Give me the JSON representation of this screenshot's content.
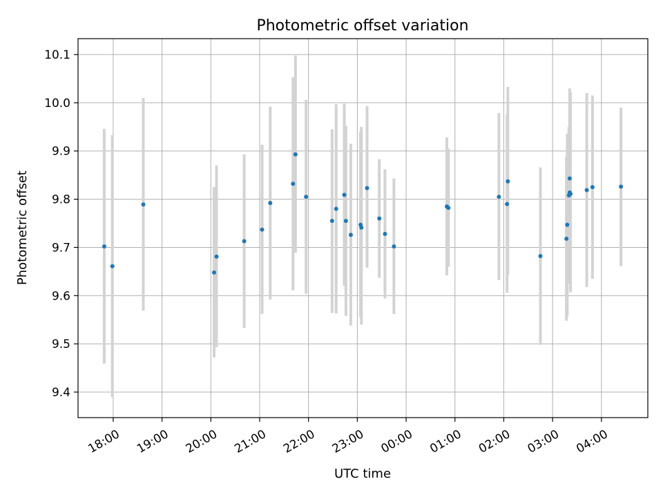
{
  "chart_data": {
    "type": "scatter",
    "title": "Photometric offset variation",
    "xlabel": "UTC time",
    "ylabel": "Photometric offset",
    "x_axis_kind": "time",
    "xlim_hours": [
      17.28,
      28.95
    ],
    "ylim": [
      9.347,
      10.133
    ],
    "x_ticks": [
      {
        "hour": 18,
        "label": "18:00"
      },
      {
        "hour": 19,
        "label": "19:00"
      },
      {
        "hour": 20,
        "label": "20:00"
      },
      {
        "hour": 21,
        "label": "21:00"
      },
      {
        "hour": 22,
        "label": "22:00"
      },
      {
        "hour": 23,
        "label": "23:00"
      },
      {
        "hour": 24,
        "label": "00:00"
      },
      {
        "hour": 25,
        "label": "01:00"
      },
      {
        "hour": 26,
        "label": "02:00"
      },
      {
        "hour": 27,
        "label": "03:00"
      },
      {
        "hour": 28,
        "label": "04:00"
      }
    ],
    "y_ticks": [
      {
        "value": 9.4,
        "label": "9.4"
      },
      {
        "value": 9.5,
        "label": "9.5"
      },
      {
        "value": 9.6,
        "label": "9.6"
      },
      {
        "value": 9.7,
        "label": "9.7"
      },
      {
        "value": 9.8,
        "label": "9.8"
      },
      {
        "value": 9.9,
        "label": "9.9"
      },
      {
        "value": 10.0,
        "label": "10.0"
      },
      {
        "value": 10.1,
        "label": "10.1"
      }
    ],
    "grid": true,
    "point_color": "#1f77b4",
    "errorbar_color": "#d3d3d3",
    "points": [
      {
        "time": "17:49",
        "y": 9.702,
        "err_low": 9.459,
        "err_high": 9.946
      },
      {
        "time": "17:59",
        "y": 9.661,
        "err_low": 9.389,
        "err_high": 9.933
      },
      {
        "time": "18:37",
        "y": 9.789,
        "err_low": 9.569,
        "err_high": 10.01
      },
      {
        "time": "20:04",
        "y": 9.648,
        "err_low": 9.472,
        "err_high": 9.825
      },
      {
        "time": "20:07",
        "y": 9.681,
        "err_low": 9.493,
        "err_high": 9.87
      },
      {
        "time": "20:41",
        "y": 9.713,
        "err_low": 9.533,
        "err_high": 9.893
      },
      {
        "time": "21:03",
        "y": 9.737,
        "err_low": 9.562,
        "err_high": 9.913
      },
      {
        "time": "21:13",
        "y": 9.792,
        "err_low": 9.592,
        "err_high": 9.992
      },
      {
        "time": "21:41",
        "y": 9.832,
        "err_low": 9.611,
        "err_high": 10.053
      },
      {
        "time": "21:44",
        "y": 9.893,
        "err_low": 9.689,
        "err_high": 10.098
      },
      {
        "time": "21:57",
        "y": 9.805,
        "err_low": 9.604,
        "err_high": 10.006
      },
      {
        "time": "22:29",
        "y": 9.755,
        "err_low": 9.564,
        "err_high": 9.945
      },
      {
        "time": "22:34",
        "y": 9.78,
        "err_low": 9.563,
        "err_high": 9.997
      },
      {
        "time": "22:44",
        "y": 9.809,
        "err_low": 9.62,
        "err_high": 9.998
      },
      {
        "time": "22:46",
        "y": 9.755,
        "err_low": 9.558,
        "err_high": 9.952
      },
      {
        "time": "22:52",
        "y": 9.726,
        "err_low": 9.538,
        "err_high": 9.915
      },
      {
        "time": "23:04",
        "y": 9.747,
        "err_low": 9.555,
        "err_high": 9.94
      },
      {
        "time": "23:05",
        "y": 9.741,
        "err_low": 9.54,
        "err_high": 9.95
      },
      {
        "time": "23:12",
        "y": 9.823,
        "err_low": 9.658,
        "err_high": 9.993
      },
      {
        "time": "23:27",
        "y": 9.76,
        "err_low": 9.637,
        "err_high": 9.883
      },
      {
        "time": "23:34",
        "y": 9.728,
        "err_low": 9.594,
        "err_high": 9.862
      },
      {
        "time": "23:45",
        "y": 9.702,
        "err_low": 9.562,
        "err_high": 9.843
      },
      {
        "time": "00:50",
        "y": 9.785,
        "err_low": 9.642,
        "err_high": 9.928
      },
      {
        "time": "00:52",
        "y": 9.782,
        "err_low": 9.66,
        "err_high": 9.905
      },
      {
        "time": "01:54",
        "y": 9.805,
        "err_low": 9.632,
        "err_high": 9.979
      },
      {
        "time": "02:04",
        "y": 9.79,
        "err_low": 9.606,
        "err_high": 9.975
      },
      {
        "time": "02:05",
        "y": 9.837,
        "err_low": 9.643,
        "err_high": 10.033
      },
      {
        "time": "02:45",
        "y": 9.682,
        "err_low": 9.498,
        "err_high": 9.866
      },
      {
        "time": "03:17",
        "y": 9.718,
        "err_low": 9.548,
        "err_high": 9.888
      },
      {
        "time": "03:18",
        "y": 9.747,
        "err_low": 9.557,
        "err_high": 9.936
      },
      {
        "time": "03:20",
        "y": 9.808,
        "err_low": 9.625,
        "err_high": 9.95
      },
      {
        "time": "03:21",
        "y": 9.814,
        "err_low": 9.63,
        "err_high": 9.995
      },
      {
        "time": "03:21",
        "y": 9.843,
        "err_low": 9.651,
        "err_high": 10.03
      },
      {
        "time": "03:22",
        "y": 9.811,
        "err_low": 9.607,
        "err_high": 10.022
      },
      {
        "time": "03:42",
        "y": 9.819,
        "err_low": 9.618,
        "err_high": 10.02
      },
      {
        "time": "03:49",
        "y": 9.825,
        "err_low": 9.635,
        "err_high": 10.015
      },
      {
        "time": "04:24",
        "y": 9.826,
        "err_low": 9.661,
        "err_high": 9.99
      }
    ]
  }
}
